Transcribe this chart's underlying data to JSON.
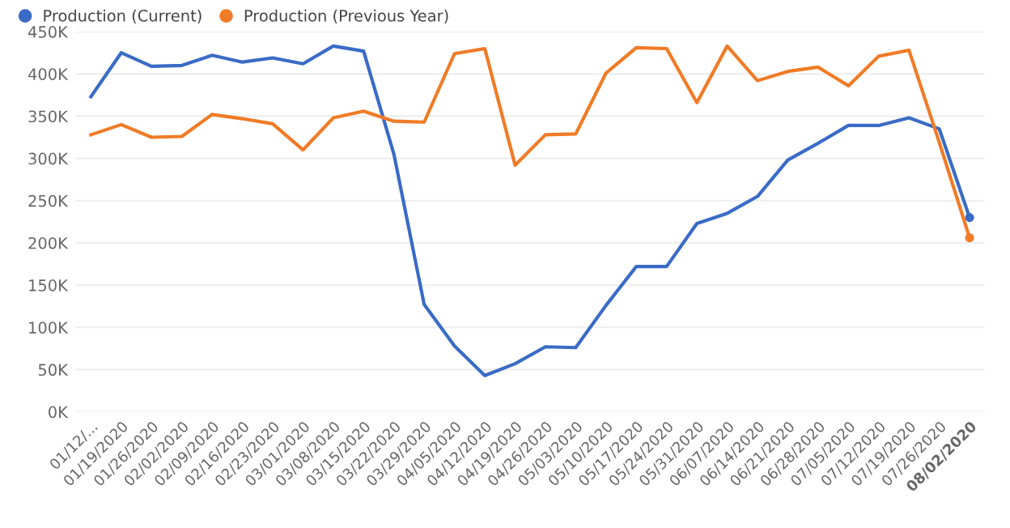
{
  "chart_data": {
    "type": "line",
    "categories": [
      "01/12/...",
      "01/19/2020",
      "01/26/2020",
      "02/02/2020",
      "02/09/2020",
      "02/16/2020",
      "02/23/2020",
      "03/01/2020",
      "03/08/2020",
      "03/15/2020",
      "03/22/2020",
      "03/29/2020",
      "04/05/2020",
      "04/12/2020",
      "04/19/2020",
      "04/26/2020",
      "05/03/2020",
      "05/10/2020",
      "05/17/2020",
      "05/24/2020",
      "05/31/2020",
      "06/07/2020",
      "06/14/2020",
      "06/21/2020",
      "06/28/2020",
      "07/05/2020",
      "07/12/2020",
      "07/19/2020",
      "07/26/2020",
      "08/02/2020"
    ],
    "series": [
      {
        "name": "Production (Current)",
        "color": "#3a6bc6",
        "values": [
          373000,
          425000,
          409000,
          410000,
          422000,
          414000,
          419000,
          412000,
          433000,
          427000,
          305000,
          127000,
          78000,
          43000,
          57000,
          77000,
          76000,
          126000,
          172000,
          172000,
          223000,
          235000,
          255000,
          298000,
          318000,
          339000,
          339000,
          348000,
          335000,
          230000
        ]
      },
      {
        "name": "Production (Previous Year)",
        "color": "#f07b26",
        "values": [
          328000,
          340000,
          325000,
          326000,
          352000,
          347000,
          341000,
          310000,
          348000,
          356000,
          344000,
          343000,
          424000,
          430000,
          292000,
          328000,
          329000,
          401000,
          431000,
          430000,
          366000,
          433000,
          392000,
          403000,
          408000,
          386000,
          421000,
          428000,
          319000,
          206000
        ]
      }
    ],
    "ylim": [
      0,
      450000
    ],
    "yticks": [
      {
        "value": 0,
        "label": "0K"
      },
      {
        "value": 50000,
        "label": "50K"
      },
      {
        "value": 100000,
        "label": "100K"
      },
      {
        "value": 150000,
        "label": "150K"
      },
      {
        "value": 200000,
        "label": "200K"
      },
      {
        "value": 250000,
        "label": "250K"
      },
      {
        "value": 300000,
        "label": "300K"
      },
      {
        "value": 350000,
        "label": "350K"
      },
      {
        "value": 400000,
        "label": "400K"
      },
      {
        "value": 450000,
        "label": "450K"
      }
    ],
    "grid": "y",
    "legend": "top left",
    "marker": "none",
    "line_style": "solid"
  }
}
